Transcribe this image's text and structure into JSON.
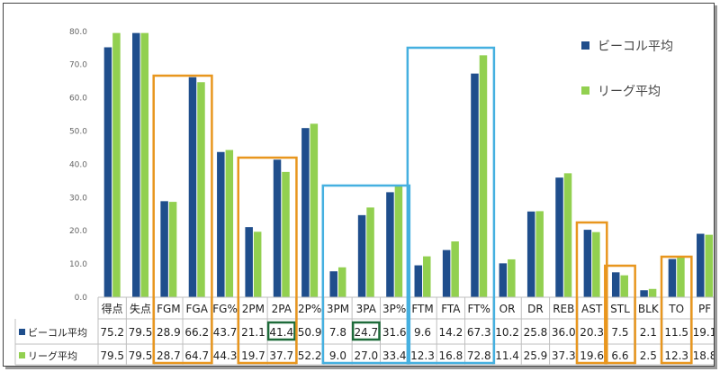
{
  "chart_data": {
    "type": "bar",
    "categories": [
      "得点",
      "失点",
      "FGM",
      "FGA",
      "FG%",
      "2PM",
      "2PA",
      "2P%",
      "3PM",
      "3PA",
      "3P%",
      "FTM",
      "FTA",
      "FT%",
      "OR",
      "DR",
      "REB",
      "AST",
      "STL",
      "BLK",
      "TO",
      "PF"
    ],
    "series": [
      {
        "name": "ビーコル平均",
        "color": "#1f4e8c",
        "values": [
          75.2,
          79.5,
          28.9,
          66.2,
          43.7,
          21.1,
          41.4,
          50.9,
          7.8,
          24.7,
          31.6,
          9.6,
          14.2,
          67.3,
          10.2,
          25.8,
          36.0,
          20.3,
          7.5,
          2.1,
          11.5,
          19.1
        ],
        "labels": [
          "75.2",
          "79.5",
          "28.9",
          "66.2",
          "43.7",
          "21.1",
          "41.4",
          "50.9",
          "7.8",
          "24.7",
          "31.6",
          "9.6",
          "14.2",
          "67.3",
          "10.2",
          "25.8",
          "36.0",
          "20.3",
          "7.5",
          "2.1",
          "11.5",
          "19.1"
        ]
      },
      {
        "name": "リーグ平均",
        "color": "#92d050",
        "values": [
          79.5,
          79.5,
          28.7,
          64.7,
          44.3,
          19.7,
          37.7,
          52.2,
          9.0,
          27.0,
          33.4,
          12.3,
          16.8,
          72.8,
          11.4,
          25.9,
          37.3,
          19.6,
          6.6,
          2.5,
          12.3,
          18.8
        ],
        "labels": [
          "79.5",
          "79.5",
          "28.7",
          "64.7",
          "44.3",
          "19.7",
          "37.7",
          "52.2",
          "9.0",
          "27.0",
          "33.4",
          "12.3",
          "16.8",
          "72.8",
          "11.4",
          "25.9",
          "37.3",
          "19.6",
          "6.6",
          "2.5",
          "12.3",
          "18.8"
        ]
      }
    ],
    "yticks": [
      "0.0",
      "10.0",
      "20.0",
      "30.0",
      "40.0",
      "50.0",
      "60.0",
      "70.0",
      "80.0"
    ],
    "ylim": [
      0,
      80
    ],
    "grid": false,
    "legend": "top-right",
    "data_table": true,
    "highlight_boxes": [
      {
        "from": "FGM",
        "to": "FGA",
        "color": "#e8961e"
      },
      {
        "from": "2PM",
        "to": "2PA",
        "color": "#e8961e"
      },
      {
        "from": "3PM",
        "to": "3P%",
        "color": "#45b0e0"
      },
      {
        "from": "FTM",
        "to": "FT%",
        "color": "#45b0e0"
      },
      {
        "from": "AST",
        "to": "AST",
        "color": "#e8961e"
      },
      {
        "from": "STL",
        "to": "STL",
        "color": "#e8961e"
      },
      {
        "from": "TO",
        "to": "TO",
        "color": "#e8961e"
      }
    ],
    "highlight_cells": [
      {
        "series": 0,
        "category": "2PA",
        "color": "#1e6b3a"
      },
      {
        "series": 0,
        "category": "3PA",
        "color": "#1e6b3a"
      }
    ]
  }
}
